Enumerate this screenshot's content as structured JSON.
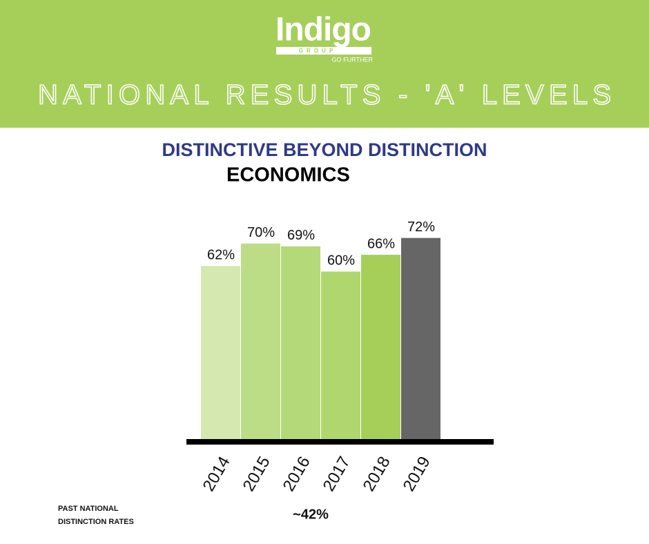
{
  "header": {
    "logo": "Indigo",
    "logo_group": "GROUP",
    "logo_tagline": "GO FURTHER",
    "title": "NATIONAL RESULTS - 'A' LEVELS"
  },
  "chart_data": {
    "type": "bar",
    "title": "DISTINCTIVE BEYOND DISTINCTION",
    "subtitle": "ECONOMICS",
    "categories": [
      "2014",
      "2015",
      "2016",
      "2017",
      "2018",
      "2019"
    ],
    "values": [
      62,
      70,
      69,
      60,
      66,
      72
    ],
    "value_labels": [
      "62%",
      "70%",
      "69%",
      "60%",
      "66%",
      "72%"
    ],
    "colors": [
      "#d4e8b0",
      "#bcdd85",
      "#b4d979",
      "#afd76e",
      "#a6cf5a",
      "#666666"
    ],
    "annotation_label": "PAST NATIONAL DISTINCTION RATES",
    "annotation_value": "~42%"
  }
}
